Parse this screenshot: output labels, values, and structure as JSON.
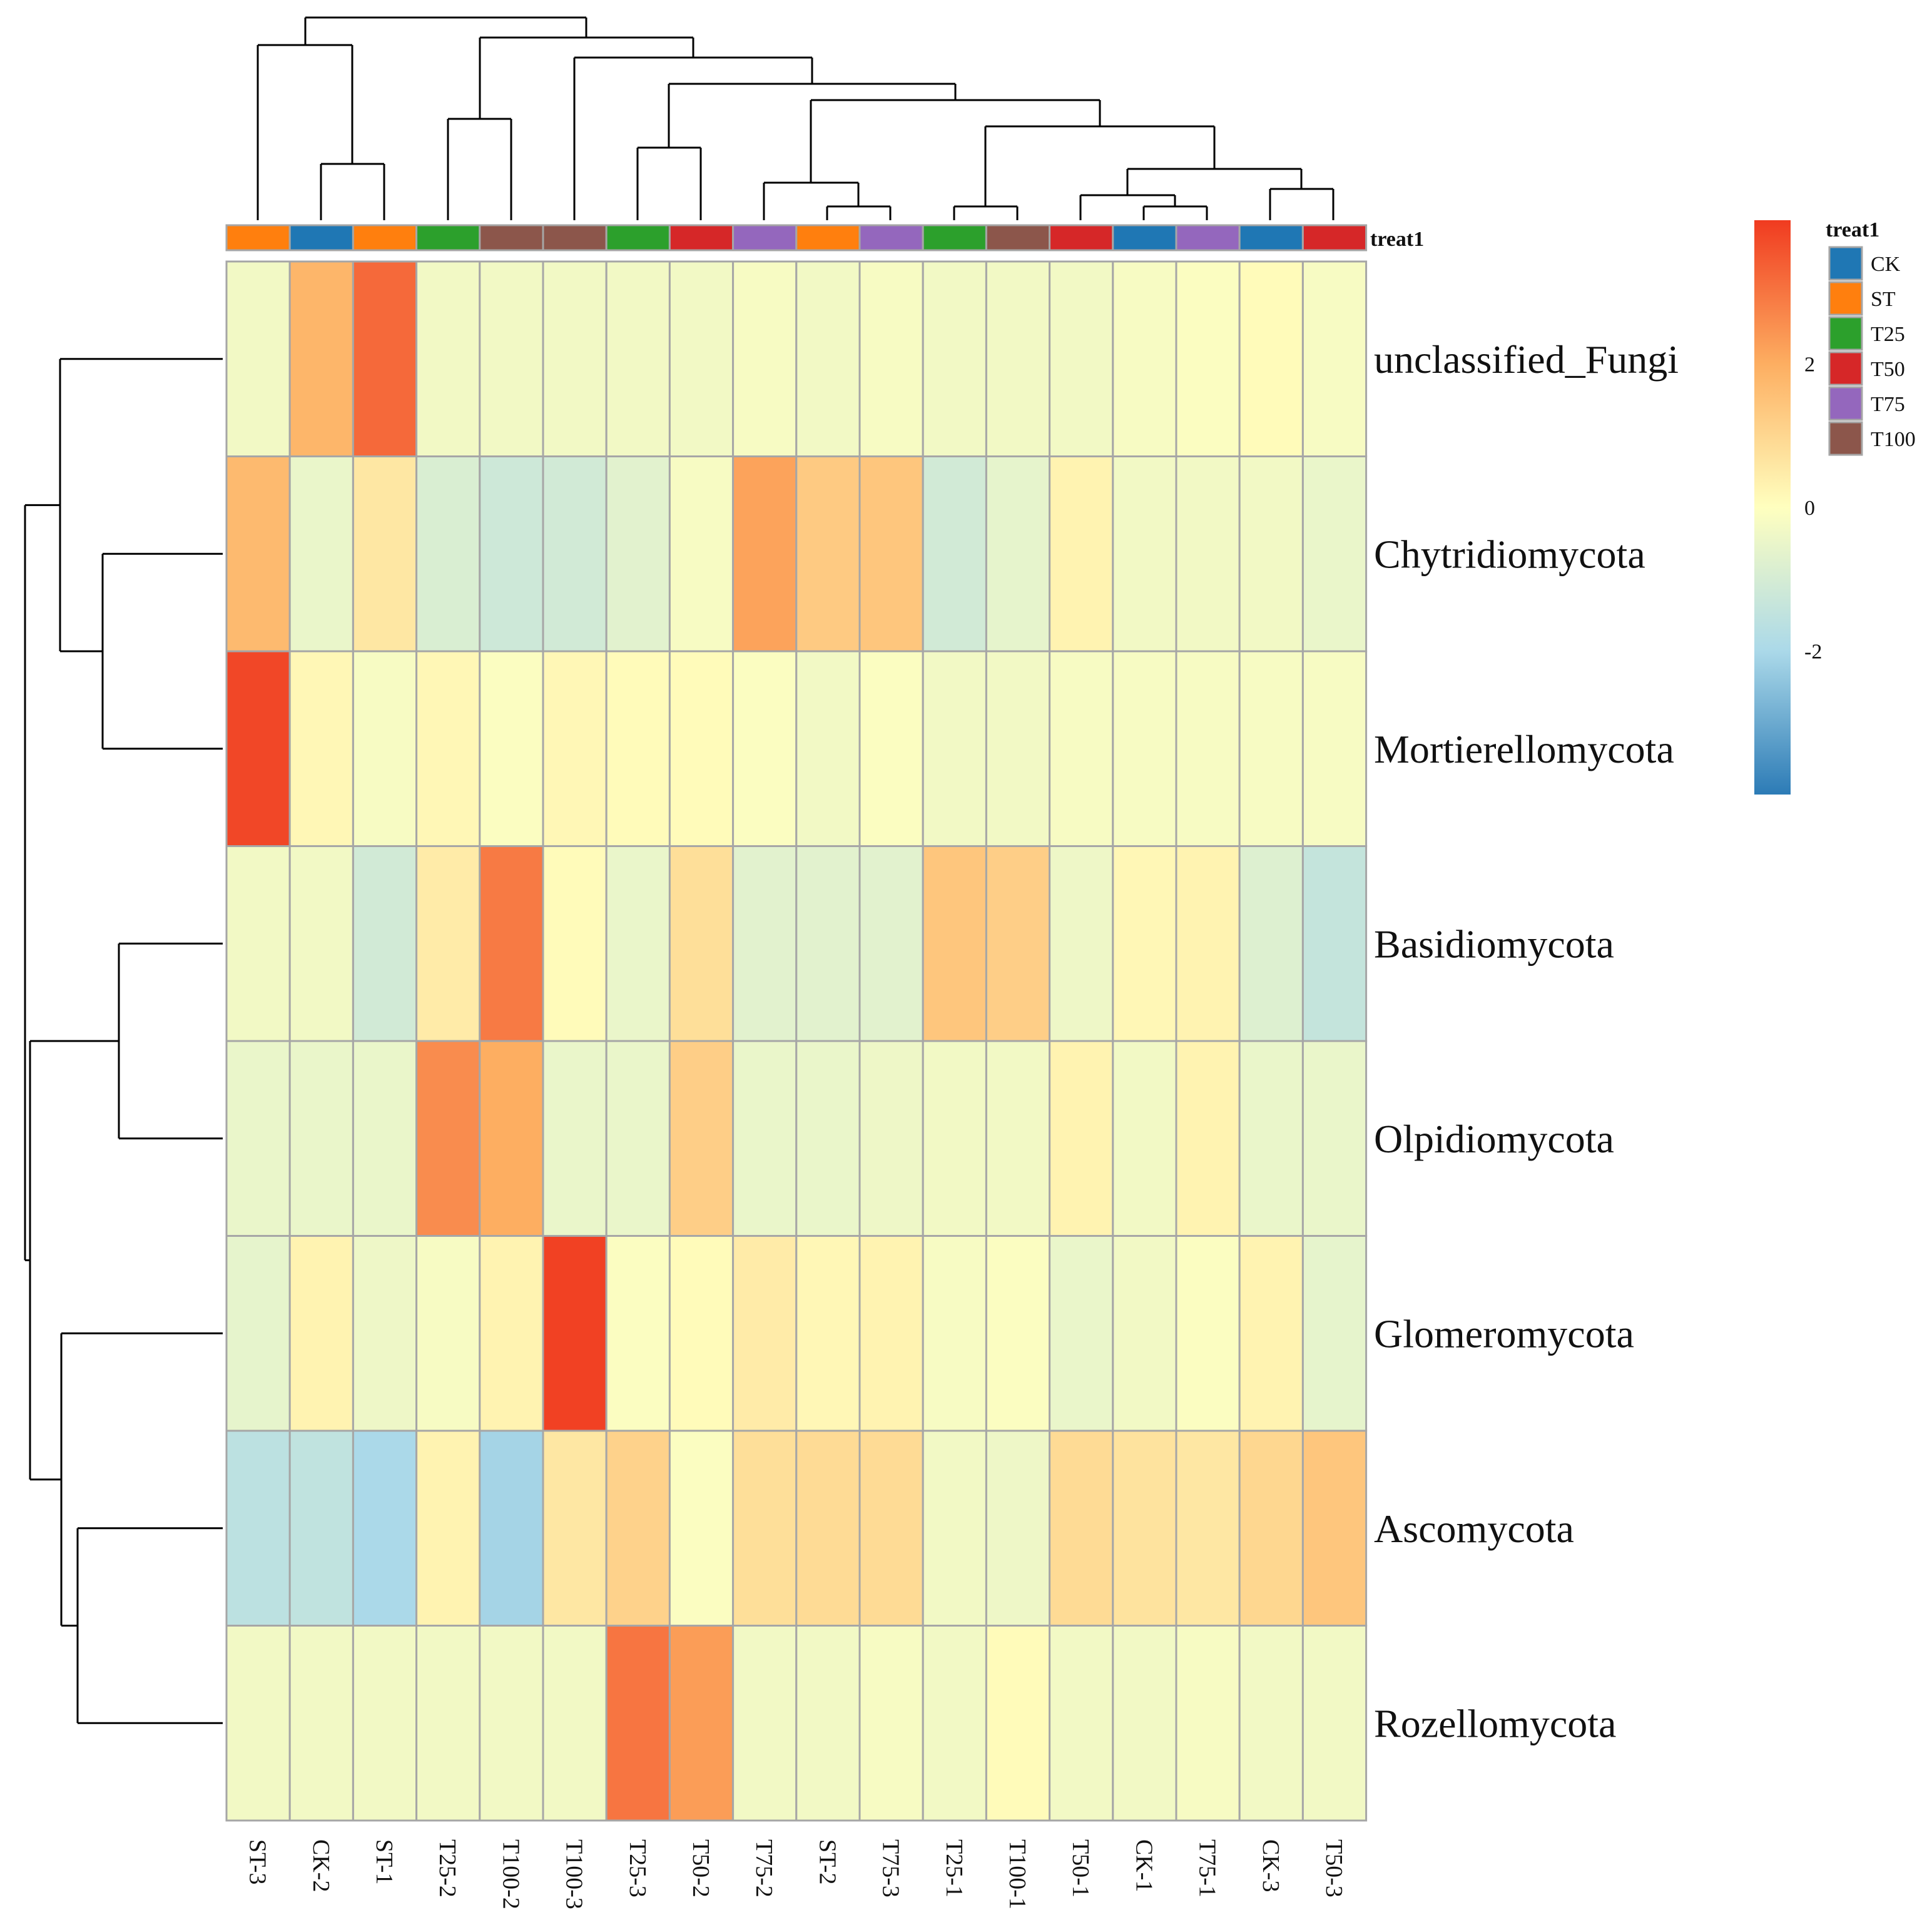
{
  "chart_data": {
    "type": "heatmap",
    "columns": [
      "ST-3",
      "CK-2",
      "ST-1",
      "T25-2",
      "T100-2",
      "T100-3",
      "T25-3",
      "T50-2",
      "T75-2",
      "ST-2",
      "T75-3",
      "T25-1",
      "T100-1",
      "T50-1",
      "CK-1",
      "T75-1",
      "CK-3",
      "T50-3"
    ],
    "rows": [
      "unclassified_Fungi",
      "Chytridiomycota",
      "Mortierellomycota",
      "Basidiomycota",
      "Olpidiomycota",
      "Glomeromycota",
      "Ascomycota",
      "Rozellomycota"
    ],
    "values": [
      [
        -0.3,
        1.8,
        3.2,
        -0.3,
        -0.3,
        -0.3,
        -0.3,
        -0.3,
        -0.2,
        -0.3,
        -0.2,
        -0.3,
        -0.3,
        -0.3,
        -0.2,
        -0.1,
        0.1,
        -0.2
      ],
      [
        1.7,
        -0.5,
        0.6,
        -0.9,
        -1.2,
        -1.1,
        -0.7,
        -0.2,
        2.2,
        1.3,
        1.4,
        -1.1,
        -0.6,
        0.3,
        -0.3,
        -0.3,
        -0.3,
        -0.5
      ],
      [
        3.8,
        0.2,
        -0.2,
        0.2,
        -0.1,
        0.2,
        0.1,
        0.1,
        -0.1,
        -0.3,
        -0.1,
        -0.3,
        -0.3,
        -0.2,
        -0.2,
        -0.2,
        -0.2,
        -0.2
      ],
      [
        -0.3,
        -0.3,
        -1.1,
        0.5,
        2.9,
        0.1,
        -0.5,
        0.8,
        -0.7,
        -0.7,
        -0.7,
        1.4,
        1.2,
        -0.4,
        0.2,
        0.3,
        -0.8,
        -1.4
      ],
      [
        -0.5,
        -0.5,
        -0.5,
        2.6,
        2.0,
        -0.5,
        -0.5,
        1.2,
        -0.5,
        -0.5,
        -0.4,
        -0.3,
        -0.3,
        0.3,
        -0.3,
        0.3,
        -0.5,
        -0.5
      ],
      [
        -0.6,
        0.3,
        -0.4,
        -0.2,
        0.3,
        3.9,
        -0.1,
        0.1,
        0.5,
        0.2,
        0.3,
        -0.2,
        -0.1,
        -0.5,
        -0.3,
        -0.1,
        0.3,
        -0.6
      ],
      [
        -1.6,
        -1.5,
        -2.0,
        0.3,
        -2.1,
        0.6,
        1.1,
        -0.1,
        0.8,
        0.9,
        0.9,
        -0.3,
        -0.4,
        0.9,
        0.7,
        0.6,
        1.0,
        1.4
      ],
      [
        -0.3,
        -0.3,
        -0.3,
        -0.3,
        -0.3,
        -0.3,
        3.0,
        2.3,
        -0.3,
        -0.3,
        -0.2,
        -0.3,
        0.1,
        -0.3,
        -0.3,
        -0.2,
        -0.3,
        -0.3
      ]
    ],
    "column_annotation": {
      "name": "treat1",
      "groups": [
        "ST",
        "CK",
        "ST",
        "T25",
        "T100",
        "T100",
        "T25",
        "T50",
        "T75",
        "ST",
        "T75",
        "T25",
        "T100",
        "T50",
        "CK",
        "T75",
        "CK",
        "T50"
      ]
    },
    "legend": {
      "title": "treat1",
      "entries": [
        {
          "label": "CK",
          "color": "#1f77b4"
        },
        {
          "label": "ST",
          "color": "#ff7f0e"
        },
        {
          "label": "T25",
          "color": "#2ca02c"
        },
        {
          "label": "T50",
          "color": "#d62728"
        },
        {
          "label": "T75",
          "color": "#9467bd"
        },
        {
          "label": "T100",
          "color": "#8c564b"
        }
      ]
    },
    "color_scale": {
      "ticks": [
        2,
        0,
        -2
      ],
      "range": [
        -4,
        4
      ],
      "colors": [
        "#2c7bb6",
        "#abd9e9",
        "#ffffbf",
        "#fdae61",
        "#f03b20"
      ]
    },
    "col_dendrogram": {
      "merges": [
        [
          9,
          11,
          0.5
        ],
        [
          15,
          16,
          0.45
        ],
        [
          8,
          -1,
          1.0
        ],
        [
          12,
          13,
          0.3
        ],
        [
          -4,
          -2,
          0.95
        ],
        [
          3,
          -5,
          1.4
        ],
        [
          1,
          -6,
          1.7
        ],
        [
          -3,
          -7,
          2.3
        ],
        [
          2,
          3,
          1.7
        ],
        [
          7,
          8,
          1.6
        ],
        [
          -9,
          -10,
          2.6
        ],
        [
          -11,
          -8,
          2.6
        ],
        [
          -12,
          -13,
          2.6
        ],
        [
          -14,
          -15,
          2.6
        ]
      ]
    },
    "row_dendrogram": {
      "structure": "((unclassified_Fungi,(Chytridiomycota,Mortierellomycota)),((Basidiomycota,Olpidiomycota),(Glomeromycota,(Ascomycota,Rozellomycota))))"
    }
  }
}
